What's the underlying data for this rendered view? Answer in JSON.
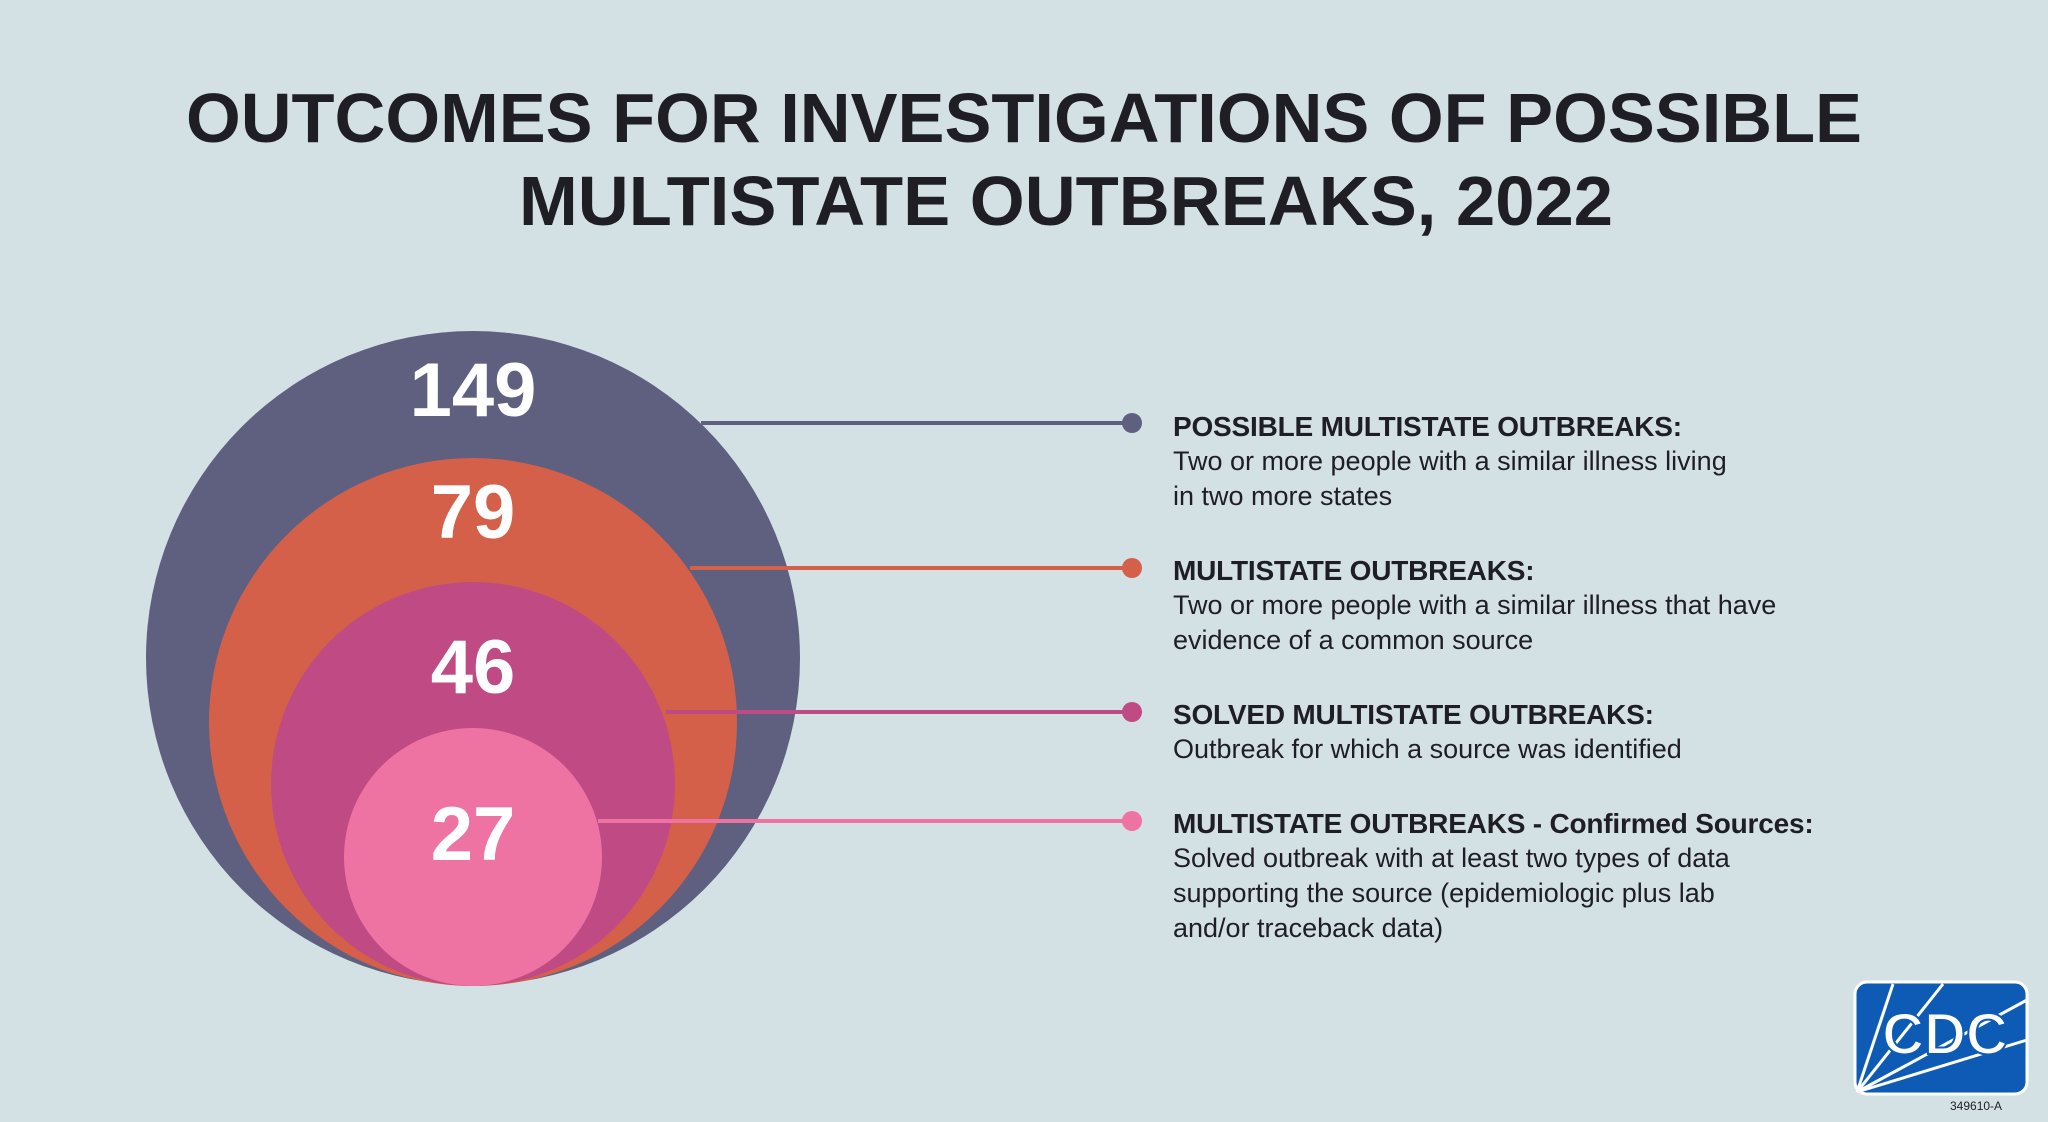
{
  "title": {
    "line1": "OUTCOMES FOR INVESTIGATIONS OF POSSIBLE",
    "line2": "MULTISTATE OUTBREAKS, 2022"
  },
  "chart_data": {
    "type": "nested-circles",
    "items": [
      {
        "value": 149,
        "label": "POSSIBLE MULTISTATE OUTBREAKS:",
        "description_lines": [
          "Two or more people with a similar illness living",
          "in two more states"
        ],
        "color": "#5f5f80"
      },
      {
        "value": 79,
        "label": "MULTISTATE OUTBREAKS:",
        "description_lines": [
          "Two or more people with a similar illness that have",
          "evidence of a common source"
        ],
        "color": "#d4604a"
      },
      {
        "value": 46,
        "label": "SOLVED MULTISTATE OUTBREAKS:",
        "description_lines": [
          "Outbreak for which a source was identified"
        ],
        "color": "#c04a83"
      },
      {
        "value": 27,
        "label": "MULTISTATE OUTBREAKS - Confirmed Sources:",
        "description_lines": [
          "Solved outbreak with at least two types of data",
          "supporting the source (epidemiologic plus lab",
          "and/or traceback data)"
        ],
        "color": "#ee73a3"
      }
    ]
  },
  "logo": {
    "text": "CDC",
    "color": "#0d5bb5"
  },
  "code": "349610-A"
}
